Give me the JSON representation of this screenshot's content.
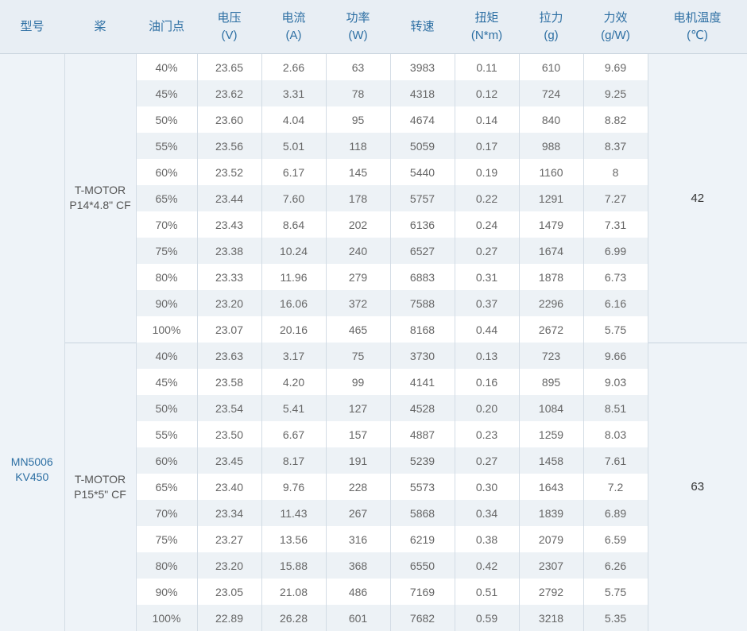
{
  "headers": [
    {
      "name": "型号",
      "unit": ""
    },
    {
      "name": "桨",
      "unit": ""
    },
    {
      "name": "油门点",
      "unit": ""
    },
    {
      "name": "电压",
      "unit": "(V)"
    },
    {
      "name": "电流",
      "unit": "(A)"
    },
    {
      "name": "功率",
      "unit": "(W)"
    },
    {
      "name": "转速",
      "unit": ""
    },
    {
      "name": "扭矩",
      "unit": "(N*m)"
    },
    {
      "name": "拉力",
      "unit": "(g)"
    },
    {
      "name": "力效",
      "unit": "(g/W)"
    },
    {
      "name": "电机温度",
      "unit": "(℃)"
    }
  ],
  "model": {
    "line1": "MN5006",
    "line2": "KV450"
  },
  "groups": [
    {
      "prop_line1": "T-MOTOR",
      "prop_line2": "P14*4.8\" CF",
      "temperature": "42",
      "rows": [
        [
          "40%",
          "23.65",
          "2.66",
          "63",
          "3983",
          "0.11",
          "610",
          "9.69"
        ],
        [
          "45%",
          "23.62",
          "3.31",
          "78",
          "4318",
          "0.12",
          "724",
          "9.25"
        ],
        [
          "50%",
          "23.60",
          "4.04",
          "95",
          "4674",
          "0.14",
          "840",
          "8.82"
        ],
        [
          "55%",
          "23.56",
          "5.01",
          "118",
          "5059",
          "0.17",
          "988",
          "8.37"
        ],
        [
          "60%",
          "23.52",
          "6.17",
          "145",
          "5440",
          "0.19",
          "1160",
          "8"
        ],
        [
          "65%",
          "23.44",
          "7.60",
          "178",
          "5757",
          "0.22",
          "1291",
          "7.27"
        ],
        [
          "70%",
          "23.43",
          "8.64",
          "202",
          "6136",
          "0.24",
          "1479",
          "7.31"
        ],
        [
          "75%",
          "23.38",
          "10.24",
          "240",
          "6527",
          "0.27",
          "1674",
          "6.99"
        ],
        [
          "80%",
          "23.33",
          "11.96",
          "279",
          "6883",
          "0.31",
          "1878",
          "6.73"
        ],
        [
          "90%",
          "23.20",
          "16.06",
          "372",
          "7588",
          "0.37",
          "2296",
          "6.16"
        ],
        [
          "100%",
          "23.07",
          "20.16",
          "465",
          "8168",
          "0.44",
          "2672",
          "5.75"
        ]
      ]
    },
    {
      "prop_line1": "T-MOTOR",
      "prop_line2": "P15*5\" CF",
      "temperature": "63",
      "rows": [
        [
          "40%",
          "23.63",
          "3.17",
          "75",
          "3730",
          "0.13",
          "723",
          "9.66"
        ],
        [
          "45%",
          "23.58",
          "4.20",
          "99",
          "4141",
          "0.16",
          "895",
          "9.03"
        ],
        [
          "50%",
          "23.54",
          "5.41",
          "127",
          "4528",
          "0.20",
          "1084",
          "8.51"
        ],
        [
          "55%",
          "23.50",
          "6.67",
          "157",
          "4887",
          "0.23",
          "1259",
          "8.03"
        ],
        [
          "60%",
          "23.45",
          "8.17",
          "191",
          "5239",
          "0.27",
          "1458",
          "7.61"
        ],
        [
          "65%",
          "23.40",
          "9.76",
          "228",
          "5573",
          "0.30",
          "1643",
          "7.2"
        ],
        [
          "70%",
          "23.34",
          "11.43",
          "267",
          "5868",
          "0.34",
          "1839",
          "6.89"
        ],
        [
          "75%",
          "23.27",
          "13.56",
          "316",
          "6219",
          "0.38",
          "2079",
          "6.59"
        ],
        [
          "80%",
          "23.20",
          "15.88",
          "368",
          "6550",
          "0.42",
          "2307",
          "6.26"
        ],
        [
          "90%",
          "23.05",
          "21.08",
          "486",
          "7169",
          "0.51",
          "2792",
          "5.75"
        ],
        [
          "100%",
          "22.89",
          "26.28",
          "601",
          "7682",
          "0.59",
          "3218",
          "5.35"
        ]
      ]
    }
  ]
}
